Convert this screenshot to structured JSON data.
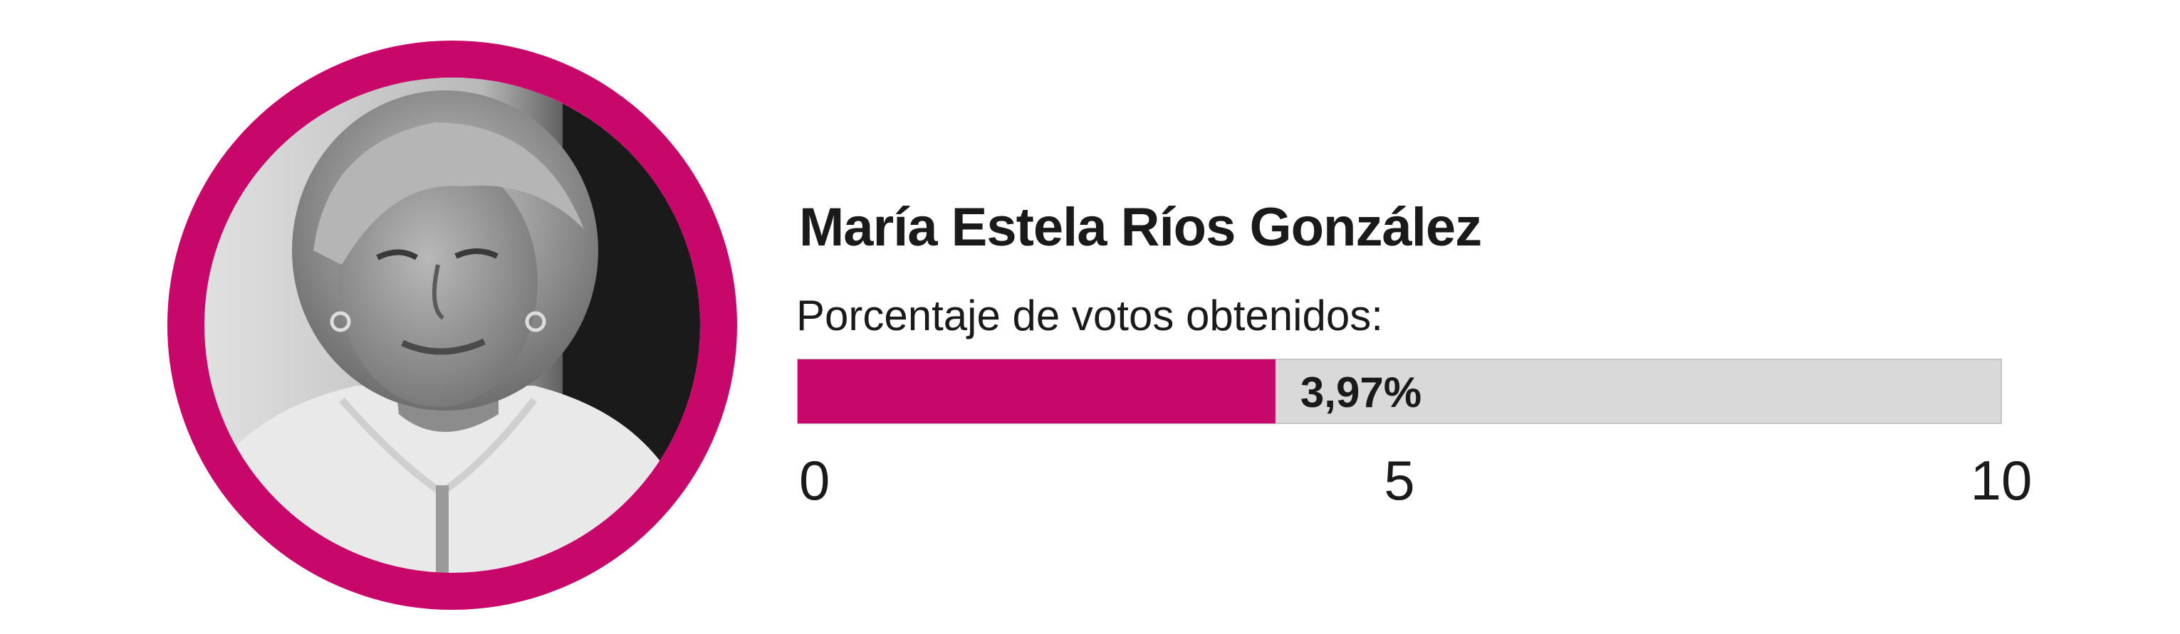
{
  "candidate": {
    "name": "María Estela Ríos González",
    "photo_ring_color": "#c8076b"
  },
  "subtitle": "Porcentaje de votos obtenidos:",
  "chart_data": {
    "type": "bar",
    "orientation": "horizontal",
    "title": "María Estela Ríos González",
    "subtitle": "Porcentaje de votos obtenidos:",
    "values": [
      3.97
    ],
    "value_label": "3,97%",
    "xlim": [
      0,
      10
    ],
    "ticks": [
      0,
      5,
      10
    ],
    "tick_labels": [
      "0",
      "5",
      "10"
    ],
    "grid": false,
    "bar_color": "#c8076b",
    "track_color": "#d9d9d9"
  }
}
